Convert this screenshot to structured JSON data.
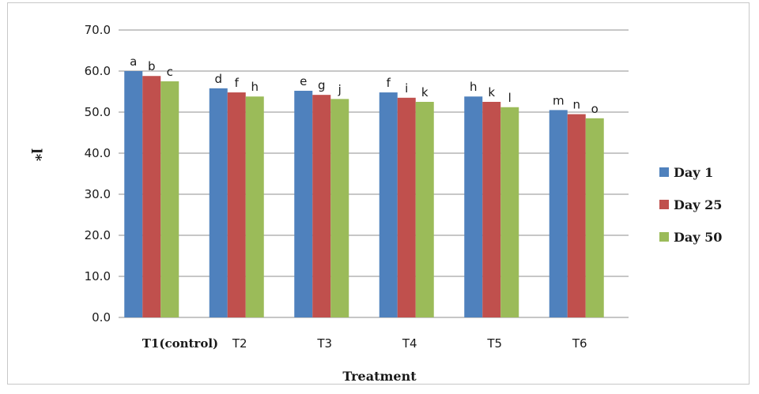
{
  "chart_data": {
    "type": "bar",
    "categories": [
      "T1",
      "T2",
      "T3",
      "T4",
      "T5",
      "T6"
    ],
    "category_suffix": {
      "T1": "(control)"
    },
    "series": [
      {
        "name": "Day 1",
        "color": "#4f81bd",
        "values": [
          60.0,
          55.8,
          55.2,
          54.8,
          53.8,
          50.5
        ],
        "letters": [
          "a",
          "d",
          "e",
          "f",
          "h",
          "m"
        ]
      },
      {
        "name": "Day 25",
        "color": "#c0504d",
        "values": [
          58.8,
          54.8,
          54.2,
          53.5,
          52.5,
          49.5
        ],
        "letters": [
          "b",
          "f",
          "g",
          "i",
          "k",
          "n"
        ]
      },
      {
        "name": "Day 50",
        "color": "#9bbb59",
        "values": [
          57.5,
          53.8,
          53.2,
          52.5,
          51.2,
          48.5
        ],
        "letters": [
          "c",
          "h",
          "j",
          "k",
          "l",
          "o"
        ]
      }
    ],
    "yticks": [
      "0.0",
      "10.0",
      "20.0",
      "30.0",
      "40.0",
      "50.0",
      "60.0",
      "70.0"
    ],
    "ylim": [
      0,
      70
    ],
    "xlabel": "Treatment",
    "ylabel": "l*",
    "legend_position": "right",
    "grid": true
  }
}
